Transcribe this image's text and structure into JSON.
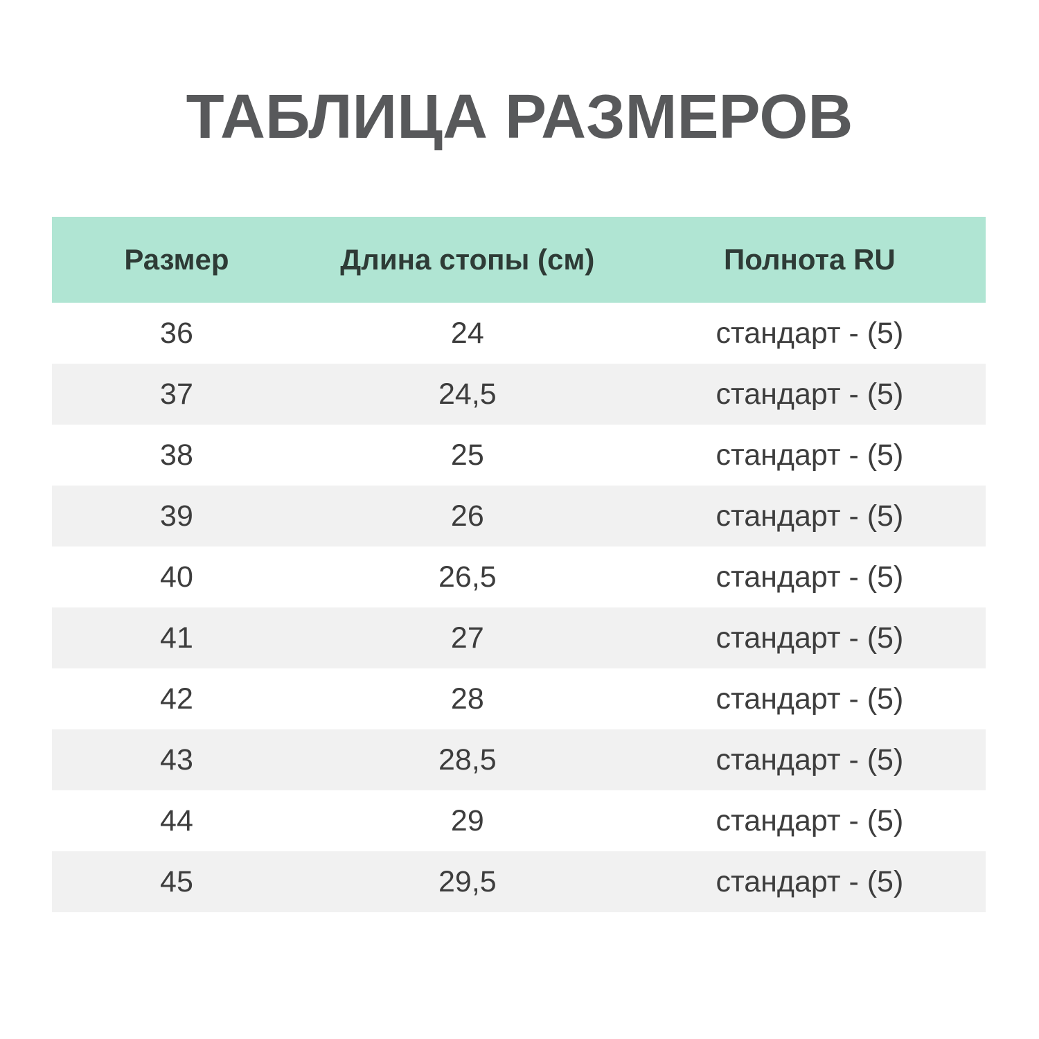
{
  "page": {
    "title": "ТАБЛИЦА РАЗМЕРОВ"
  },
  "colors": {
    "header_bg": "#b0e5d3",
    "header_text": "#2e3b36",
    "stripe_row_bg": "#f1f1f1",
    "plain_row_bg": "#ffffff",
    "body_text": "#3d3d3d",
    "title_text": "#58595b"
  },
  "chart_data": {
    "type": "table",
    "title": "ТАБЛИЦА РАЗМЕРОВ",
    "columns": [
      "Размер",
      "Длина стопы (см)",
      "Полнота RU"
    ],
    "rows": [
      [
        "36",
        "24",
        "стандарт - (5)"
      ],
      [
        "37",
        "24,5",
        "стандарт - (5)"
      ],
      [
        "38",
        "25",
        "стандарт - (5)"
      ],
      [
        "39",
        "26",
        "стандарт - (5)"
      ],
      [
        "40",
        "26,5",
        "стандарт - (5)"
      ],
      [
        "41",
        "27",
        "стандарт - (5)"
      ],
      [
        "42",
        "28",
        "стандарт - (5)"
      ],
      [
        "43",
        "28,5",
        "стандарт - (5)"
      ],
      [
        "44",
        "29",
        "стандарт - (5)"
      ],
      [
        "45",
        "29,5",
        "стандарт - (5)"
      ]
    ],
    "layout": {
      "striped": true,
      "stripe_pattern": "even-rows-gray",
      "header_position": "top",
      "text_align": "center"
    }
  }
}
